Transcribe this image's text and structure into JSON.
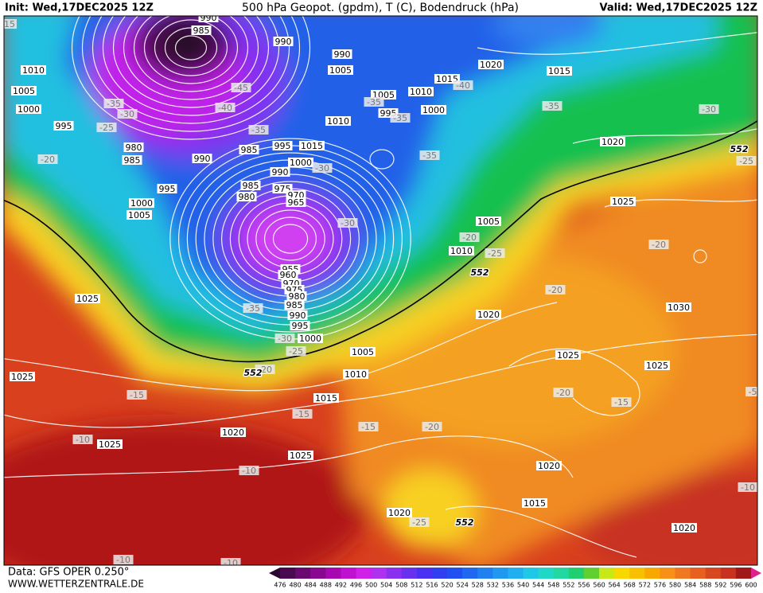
{
  "header": {
    "init": "Init: Wed,17DEC2025 12Z",
    "title": "500 hPa Geopot. (gpdm), T (C), Bodendruck (hPa)",
    "valid": "Valid: Wed,17DEC2025 12Z"
  },
  "footer": {
    "data_source": "Data: GFS OPER 0.250°",
    "website": "WWW.WETTERZENTRALE.DE"
  },
  "map": {
    "isobar_labels": [
      "990",
      "985",
      "990",
      "990",
      "1005",
      "1010",
      "1005",
      "1000",
      "995",
      "980",
      "985",
      "990",
      "995",
      "1000",
      "1005",
      "985",
      "995",
      "1015",
      "1000",
      "990",
      "985",
      "980",
      "975",
      "970",
      "965",
      "1010",
      "995",
      "1005",
      "1010",
      "1015",
      "1000",
      "1020",
      "1015",
      "1020",
      "1025",
      "1005",
      "1010",
      "955",
      "960",
      "970",
      "975",
      "980",
      "985",
      "990",
      "995",
      "1000",
      "1005",
      "1010",
      "1015",
      "1020",
      "1025",
      "1025",
      "1025",
      "1025",
      "1020",
      "1025",
      "1030",
      "1025",
      "1020",
      "1015",
      "1020",
      "1020"
    ],
    "temperature_labels": [
      "15",
      "-45",
      "-40",
      "-35",
      "-30",
      "-25",
      "-20",
      "-35",
      "-40",
      "-35",
      "-35",
      "-30",
      "-30",
      "-35",
      "-35",
      "-30",
      "-25",
      "-20",
      "-25",
      "-20",
      "-20",
      "-35",
      "-30",
      "-25",
      "-20",
      "-15",
      "-15",
      "-15",
      "-20",
      "-10",
      "-10",
      "-20",
      "-15",
      "-10",
      "-25",
      "-10",
      "-10",
      "-5"
    ],
    "height_labels": [
      "552",
      "552",
      "552",
      "552"
    ]
  },
  "colorbar": {
    "labels": [
      476,
      480,
      484,
      488,
      492,
      496,
      500,
      504,
      508,
      512,
      516,
      520,
      524,
      528,
      532,
      536,
      540,
      544,
      548,
      552,
      556,
      560,
      564,
      568,
      572,
      576,
      580,
      584,
      588,
      592,
      596,
      600
    ],
    "colors": [
      "#2a0830",
      "#4a0a50",
      "#6a0a70",
      "#8a0890",
      "#a808b0",
      "#c010d0",
      "#d020e8",
      "#b030f0",
      "#8c30f0",
      "#6a30f0",
      "#4a30f0",
      "#3040f0",
      "#2050f0",
      "#2068f0",
      "#2080f0",
      "#2098f0",
      "#20b0f0",
      "#20c8e8",
      "#20d8c8",
      "#20d8a0",
      "#20d070",
      "#60d030",
      "#c8e818",
      "#f8d800",
      "#f8c000",
      "#f8a800",
      "#f89018",
      "#f07820",
      "#e86020",
      "#d84820",
      "#c83020",
      "#a01818",
      "#e0208c"
    ]
  }
}
